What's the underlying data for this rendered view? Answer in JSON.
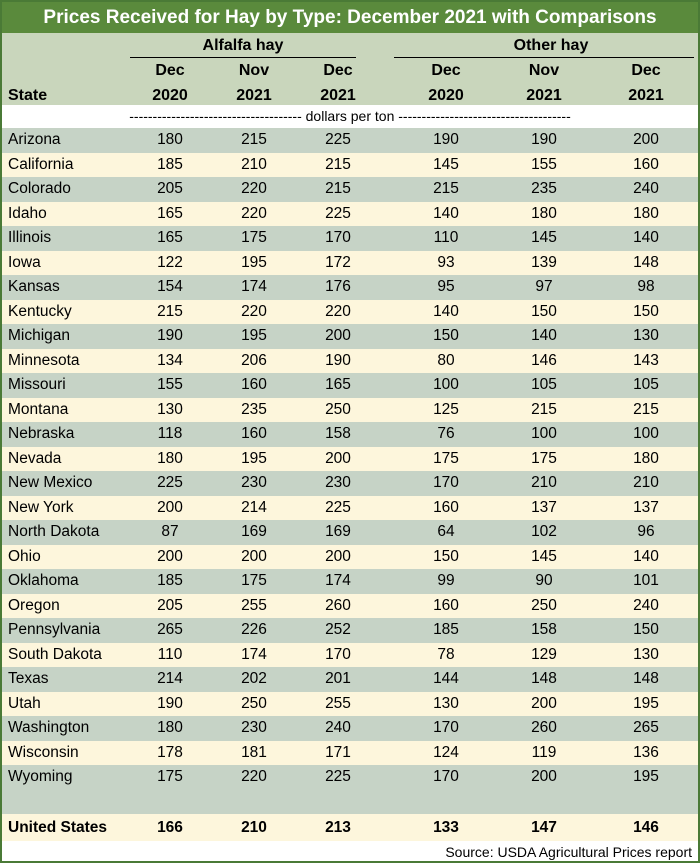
{
  "title": "Prices Received for Hay by Type: December 2021 with Comparisons",
  "groups": [
    "Alfalfa hay",
    "Other hay"
  ],
  "col_top": [
    "Dec",
    "Nov",
    "Dec",
    "Dec",
    "Nov",
    "Dec"
  ],
  "col_bot": [
    "2020",
    "2021",
    "2021",
    "2020",
    "2021",
    "2021"
  ],
  "state_header": "State",
  "units": "------------------------------------- dollars per ton -------------------------------------",
  "rows": [
    {
      "state": "Arizona",
      "v": [
        "180",
        "215",
        "225",
        "190",
        "190",
        "200"
      ]
    },
    {
      "state": "California",
      "v": [
        "185",
        "210",
        "215",
        "145",
        "155",
        "160"
      ]
    },
    {
      "state": "Colorado",
      "v": [
        "205",
        "220",
        "215",
        "215",
        "235",
        "240"
      ]
    },
    {
      "state": "Idaho",
      "v": [
        "165",
        "220",
        "225",
        "140",
        "180",
        "180"
      ]
    },
    {
      "state": "Illinois",
      "v": [
        "165",
        "175",
        "170",
        "110",
        "145",
        "140"
      ]
    },
    {
      "state": "Iowa",
      "v": [
        "122",
        "195",
        "172",
        "93",
        "139",
        "148"
      ]
    },
    {
      "state": "Kansas",
      "v": [
        "154",
        "174",
        "176",
        "95",
        "97",
        "98"
      ]
    },
    {
      "state": "Kentucky",
      "v": [
        "215",
        "220",
        "220",
        "140",
        "150",
        "150"
      ]
    },
    {
      "state": "Michigan",
      "v": [
        "190",
        "195",
        "200",
        "150",
        "140",
        "130"
      ]
    },
    {
      "state": "Minnesota",
      "v": [
        "134",
        "206",
        "190",
        "80",
        "146",
        "143"
      ]
    },
    {
      "state": "Missouri",
      "v": [
        "155",
        "160",
        "165",
        "100",
        "105",
        "105"
      ]
    },
    {
      "state": "Montana",
      "v": [
        "130",
        "235",
        "250",
        "125",
        "215",
        "215"
      ]
    },
    {
      "state": "Nebraska",
      "v": [
        "118",
        "160",
        "158",
        "76",
        "100",
        "100"
      ]
    },
    {
      "state": "Nevada",
      "v": [
        "180",
        "195",
        "200",
        "175",
        "175",
        "180"
      ]
    },
    {
      "state": "New Mexico",
      "v": [
        "225",
        "230",
        "230",
        "170",
        "210",
        "210"
      ]
    },
    {
      "state": "New York",
      "v": [
        "200",
        "214",
        "225",
        "160",
        "137",
        "137"
      ]
    },
    {
      "state": "North Dakota",
      "v": [
        "87",
        "169",
        "169",
        "64",
        "102",
        "96"
      ]
    },
    {
      "state": "Ohio",
      "v": [
        "200",
        "200",
        "200",
        "150",
        "145",
        "140"
      ]
    },
    {
      "state": "Oklahoma",
      "v": [
        "185",
        "175",
        "174",
        "99",
        "90",
        "101"
      ]
    },
    {
      "state": "Oregon",
      "v": [
        "205",
        "255",
        "260",
        "160",
        "250",
        "240"
      ]
    },
    {
      "state": "Pennsylvania",
      "v": [
        "265",
        "226",
        "252",
        "185",
        "158",
        "150"
      ]
    },
    {
      "state": "South Dakota",
      "v": [
        "110",
        "174",
        "170",
        "78",
        "129",
        "130"
      ]
    },
    {
      "state": "Texas",
      "v": [
        "214",
        "202",
        "201",
        "144",
        "148",
        "148"
      ]
    },
    {
      "state": "Utah",
      "v": [
        "190",
        "250",
        "255",
        "130",
        "200",
        "195"
      ]
    },
    {
      "state": "Washington",
      "v": [
        "180",
        "230",
        "240",
        "170",
        "260",
        "265"
      ]
    },
    {
      "state": "Wisconsin",
      "v": [
        "178",
        "181",
        "171",
        "124",
        "119",
        "136"
      ]
    },
    {
      "state": "Wyoming",
      "v": [
        "175",
        "220",
        "225",
        "170",
        "200",
        "195"
      ]
    }
  ],
  "total": {
    "state": "United States",
    "v": [
      "166",
      "210",
      "213",
      "133",
      "147",
      "146"
    ]
  },
  "source": "Source: USDA Agricultural Prices report",
  "colors": {
    "title_bg": "#5a8a3c",
    "header_bg": "#c9d6bc",
    "row_green": "#c6d3c6",
    "row_cream": "#fdf6dc"
  }
}
